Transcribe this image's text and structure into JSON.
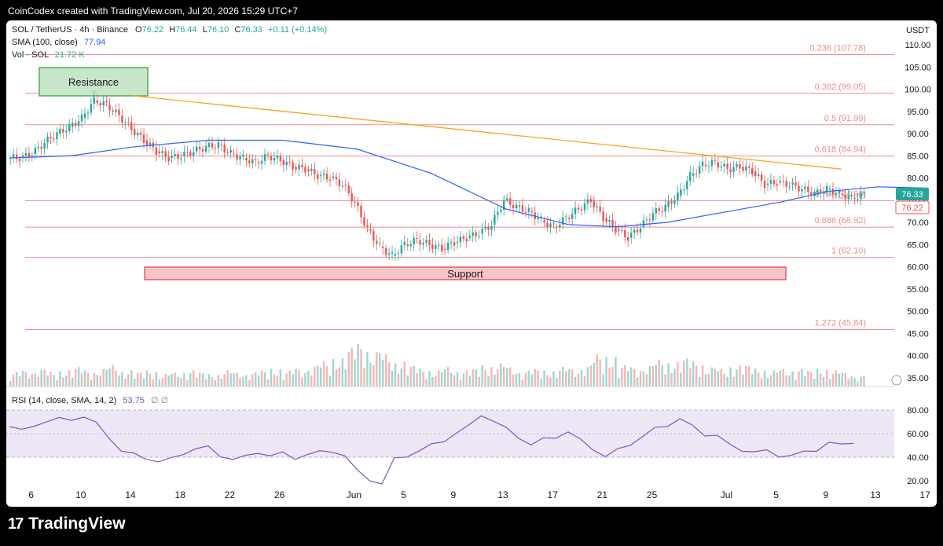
{
  "header": {
    "created": "CoinCodex created with TradingView.com, Jul 20, 2026 15:29 UTC+7",
    "symbol": "SOL / TetherUS · 4h · Binance",
    "ohlc": {
      "o_label": "O",
      "o": "76.22",
      "h_label": "H",
      "h": "76.44",
      "l_label": "L",
      "l": "76.10",
      "c_label": "C",
      "c": "76.33",
      "change": "+0.11 (+0.14%)"
    },
    "sma_label": "SMA (100, close)",
    "sma_value": "77.94",
    "vol_label": "Vol · SOL",
    "vol_value": "21.72 K",
    "rsi_label": "RSI (14, close, SMA, 14, 2)",
    "rsi_value": "53.75",
    "rsi_na": "∅ ∅"
  },
  "currency": "USDT",
  "price_axis": [
    "110.00",
    "105.00",
    "100.00",
    "95.00",
    "90.00",
    "85.00",
    "80.00",
    "75.00",
    "70.00",
    "65.00",
    "60.00",
    "55.00",
    "50.00",
    "45.00",
    "40.00",
    "35.00"
  ],
  "rsi_axis": [
    "80.00",
    "60.00",
    "40.00",
    "20.00"
  ],
  "price_tags": {
    "last": "76.33",
    "open": "76.22"
  },
  "annotations": {
    "resistance": "Resistance",
    "support": "Support"
  },
  "fib_levels": [
    {
      "label": "0.236 (107.78)",
      "value": 107.78
    },
    {
      "label": "0.382 (99.05)",
      "value": 99.05
    },
    {
      "label": "0.5 (91.99)",
      "value": 91.99
    },
    {
      "label": "0.618 (84.94)",
      "value": 84.94
    },
    {
      "label": "0.786 (74.90)",
      "value": 74.9
    },
    {
      "label": "0.886 (68.92)",
      "value": 68.92
    },
    {
      "label": "1 (62.10)",
      "value": 62.1
    },
    {
      "label": "1.272 (45.84)",
      "value": 45.84
    }
  ],
  "x_axis": [
    "6",
    "10",
    "14",
    "18",
    "22",
    "26",
    "Jun",
    "5",
    "9",
    "13",
    "17",
    "21",
    "25",
    "Jul",
    "5",
    "9",
    "13",
    "17"
  ],
  "branding": {
    "logo_mark": "17",
    "logo_word": "TradingView"
  },
  "colors": {
    "up": "#26a69a",
    "down": "#ef5350",
    "sma": "#2962ff",
    "trend": "#f5a623",
    "fib": "#f28b8b",
    "rsi": "#7e57c2",
    "rsi_band": "#ede7f6"
  },
  "chart_data": {
    "type": "candlestick",
    "title": "SOL / TetherUS · 4h · Binance",
    "ylabel": "USDT",
    "ylim": [
      33,
      113
    ],
    "x_start": "May 4",
    "daily_close": [
      84.5,
      85.4,
      88.0,
      90.0,
      91.5,
      93.5,
      97.5,
      96.5,
      94.0,
      91.0,
      88.5,
      86.0,
      84.5,
      85.0,
      86.0,
      87.0,
      87.5,
      85.5,
      84.5,
      83.5,
      85.0,
      84.0,
      82.5,
      82.0,
      80.5,
      80.0,
      78.5,
      74.5,
      68.5,
      64.5,
      62.5,
      65.0,
      66.0,
      65.0,
      64.0,
      65.5,
      66.5,
      67.5,
      69.5,
      75.0,
      73.5,
      72.5,
      70.5,
      69.0,
      71.0,
      73.0,
      75.0,
      71.0,
      68.5,
      66.5,
      69.0,
      72.0,
      73.5,
      76.0,
      80.5,
      83.0,
      83.5,
      82.0,
      82.5,
      81.5,
      78.5,
      79.0,
      78.5,
      77.5,
      76.5,
      77.5,
      76.5,
      75.5,
      76.3
    ],
    "sma100": [
      [
        0,
        84.5
      ],
      [
        5,
        85.0
      ],
      [
        10,
        87.0
      ],
      [
        16,
        88.5
      ],
      [
        22,
        88.5
      ],
      [
        28,
        86.5
      ],
      [
        34,
        81.0
      ],
      [
        40,
        73.0
      ],
      [
        45,
        69.5
      ],
      [
        49,
        69.0
      ],
      [
        53,
        70.0
      ],
      [
        57,
        72.0
      ],
      [
        62,
        74.5
      ],
      [
        66,
        77.0
      ],
      [
        70,
        78.0
      ],
      [
        74,
        77.7
      ]
    ],
    "trendline": [
      [
        10,
        98.5
      ],
      [
        67,
        82.0
      ]
    ],
    "support_zone": [
      58.0,
      61.0
    ],
    "resistance_zone": [
      98.0,
      104.0
    ],
    "rsi": [
      66,
      62,
      68,
      70,
      72,
      73,
      74,
      68,
      58,
      45,
      42,
      40,
      36,
      38,
      44,
      47,
      48,
      42,
      38,
      40,
      45,
      41,
      43,
      40,
      42,
      44,
      46,
      41,
      28,
      22,
      17,
      38,
      42,
      45,
      50,
      55,
      60,
      66,
      77,
      70,
      64,
      58,
      50,
      55,
      58,
      61,
      54,
      48,
      40,
      46,
      52,
      57,
      64,
      68,
      72,
      66,
      60,
      58,
      50,
      47,
      44,
      45,
      42,
      41,
      44,
      47,
      52,
      50,
      53.75
    ],
    "volume_peaks": [
      8,
      9,
      10,
      8,
      9,
      11,
      9,
      10,
      12,
      9,
      8,
      9,
      7,
      8,
      9,
      8,
      7,
      9,
      8,
      8,
      9,
      10,
      9,
      10,
      12,
      14,
      16,
      22,
      24,
      20,
      18,
      14,
      12,
      10,
      9,
      11,
      9,
      10,
      12,
      13,
      11,
      9,
      10,
      9,
      11,
      10,
      12,
      18,
      17,
      12,
      11,
      12,
      15,
      14,
      16,
      14,
      11,
      10,
      12,
      12,
      10,
      9,
      10,
      10,
      9,
      10,
      9,
      8,
      6
    ]
  }
}
